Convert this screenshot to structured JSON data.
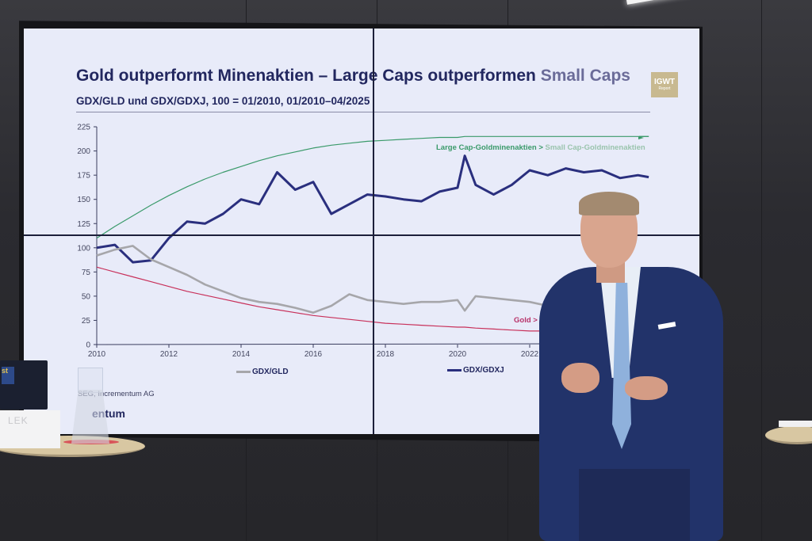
{
  "slide": {
    "title_main": "Gold outperformt Minenaktien – Large Caps outperformen ",
    "title_muted": "Small Caps",
    "subtitle": "GDX/GLD und GDX/GDXJ, 100 = 01/2010, 01/2010–04/2025",
    "logo_line1": "IGWT",
    "logo_line2": "Report",
    "annotation_green_a": "Large Cap-Goldminenaktien > ",
    "annotation_green_b": "Small Cap-Goldminenaktien",
    "annotation_red": "Gold > Lar",
    "source": "SEG, Incrementum AG",
    "footer_logo": "entum",
    "legend": [
      {
        "label": "GDX/GLD",
        "color": "#a6a6aa"
      },
      {
        "label": "GDX/GDXJ",
        "color": "#2a2f7e"
      }
    ]
  },
  "room": {
    "nameplate_text": "LEK",
    "laptop_sticker": "st"
  },
  "colors": {
    "gdx_gdxj": "#2a2f7e",
    "gdx_gld": "#a6a6aa",
    "trend_up": "#3a9a6a",
    "trend_down": "#c8305a",
    "title": "#22275f"
  },
  "chart_data": {
    "type": "line",
    "title": "Gold outperformt Minenaktien – Large Caps outperformen Small Caps",
    "subtitle": "GDX/GLD und GDX/GDXJ, 100 = 01/2010, 01/2010–04/2025",
    "xlabel": "",
    "ylabel": "",
    "ylim": [
      0,
      225
    ],
    "yticks": [
      0,
      25,
      50,
      75,
      100,
      125,
      150,
      175,
      200,
      225
    ],
    "xticks": [
      "2010",
      "2012",
      "2014",
      "2016",
      "2018",
      "2020",
      "2022"
    ],
    "grid": false,
    "legend_position": "bottom",
    "x": [
      2010.0,
      2010.5,
      2011.0,
      2011.5,
      2012.0,
      2012.5,
      2013.0,
      2013.5,
      2014.0,
      2014.5,
      2015.0,
      2015.5,
      2016.0,
      2016.5,
      2017.0,
      2017.5,
      2018.0,
      2018.5,
      2019.0,
      2019.5,
      2020.0,
      2020.2,
      2020.5,
      2021.0,
      2021.5,
      2022.0,
      2022.5,
      2023.0,
      2023.5,
      2024.0,
      2024.5,
      2025.0,
      2025.3
    ],
    "series": [
      {
        "name": "GDX/GDXJ",
        "values": [
          100,
          103,
          85,
          87,
          110,
          127,
          125,
          135,
          150,
          145,
          178,
          160,
          168,
          135,
          145,
          155,
          153,
          150,
          148,
          158,
          162,
          195,
          165,
          155,
          165,
          180,
          175,
          182,
          178,
          180,
          172,
          175,
          173
        ]
      },
      {
        "name": "GDX/GLD",
        "values": [
          92,
          98,
          102,
          88,
          80,
          72,
          62,
          55,
          48,
          44,
          42,
          38,
          33,
          40,
          52,
          46,
          44,
          42,
          44,
          44,
          46,
          35,
          50,
          48,
          46,
          44,
          40,
          38,
          null,
          null,
          null,
          null,
          null
        ]
      },
      {
        "name": "Trend Large Cap > Small Cap",
        "values": [
          110,
          122,
          133,
          144,
          154,
          163,
          171,
          178,
          184,
          190,
          195,
          199,
          203,
          206,
          208,
          210,
          211,
          212,
          213,
          214,
          214,
          215,
          215,
          215,
          215,
          215,
          215,
          215,
          215,
          215,
          215,
          215,
          215
        ]
      },
      {
        "name": "Trend Gold > Large Caps",
        "values": [
          80,
          75,
          70,
          65,
          60,
          55,
          51,
          47,
          43,
          39,
          36,
          33,
          30,
          28,
          26,
          24,
          22,
          21,
          20,
          19,
          18,
          18,
          17,
          16,
          15,
          14,
          14,
          14,
          null,
          null,
          null,
          null,
          null
        ]
      }
    ],
    "annotations": [
      "Large Cap-Goldminenaktien > Small Cap-Goldminenaktien",
      "Gold > Lar…"
    ]
  }
}
